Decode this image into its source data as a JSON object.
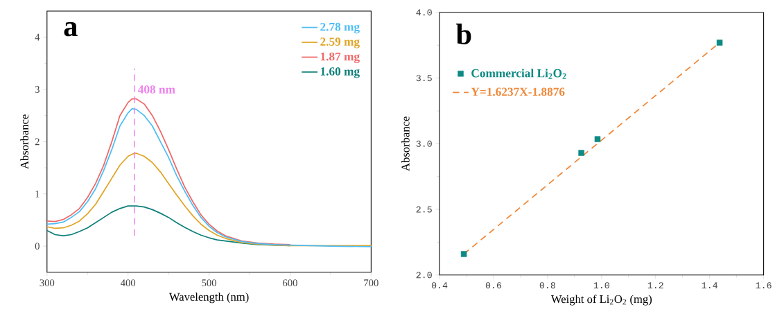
{
  "chart_data": [
    {
      "type": "line",
      "xlabel": "Wavelength (nm)",
      "ylabel": "Absorbance",
      "annotations": [
        "a"
      ],
      "xlim": [
        300,
        700
      ],
      "ylim": [
        -0.5,
        4.5
      ],
      "xticks": [
        300,
        400,
        500,
        600,
        700
      ],
      "yticks": [
        0,
        1,
        2,
        3,
        4
      ],
      "legend": "top right",
      "ref_lines": [
        {
          "axis": "x",
          "value": 408,
          "label": "408 nm",
          "color": "#ee82ee",
          "line_style": "dashed"
        }
      ],
      "x": [
        300,
        310,
        320,
        330,
        340,
        350,
        360,
        370,
        380,
        390,
        400,
        405,
        410,
        420,
        430,
        440,
        450,
        460,
        470,
        480,
        490,
        500,
        510,
        520,
        540,
        560,
        580,
        600,
        650,
        700
      ],
      "series": [
        {
          "name": "2.78 mg",
          "color": "#4dbdf5",
          "values": [
            0.42,
            0.43,
            0.46,
            0.55,
            0.66,
            0.85,
            1.1,
            1.45,
            1.85,
            2.3,
            2.55,
            2.63,
            2.62,
            2.5,
            2.3,
            2.0,
            1.7,
            1.35,
            1.05,
            0.78,
            0.55,
            0.38,
            0.26,
            0.18,
            0.09,
            0.05,
            0.03,
            0.02,
            0,
            -0.01
          ]
        },
        {
          "name": "2.59 mg",
          "color": "#e0a526",
          "values": [
            0.37,
            0.34,
            0.35,
            0.4,
            0.48,
            0.62,
            0.8,
            1.05,
            1.3,
            1.55,
            1.72,
            1.76,
            1.78,
            1.72,
            1.6,
            1.42,
            1.2,
            0.98,
            0.77,
            0.58,
            0.42,
            0.3,
            0.21,
            0.15,
            0.07,
            0.04,
            0.02,
            0.01,
            0.01,
            0.01
          ]
        },
        {
          "name": "1.87 mg",
          "color": "#f06767",
          "values": [
            0.48,
            0.47,
            0.51,
            0.6,
            0.72,
            0.93,
            1.2,
            1.55,
            2.0,
            2.5,
            2.75,
            2.82,
            2.82,
            2.72,
            2.5,
            2.2,
            1.85,
            1.48,
            1.13,
            0.85,
            0.6,
            0.42,
            0.29,
            0.2,
            0.1,
            0.06,
            0.04,
            0.03,
            null,
            null
          ]
        },
        {
          "name": "1.60 mg",
          "color": "#0e7f7a",
          "values": [
            0.3,
            0.22,
            0.2,
            0.22,
            0.28,
            0.35,
            0.45,
            0.55,
            0.65,
            0.72,
            0.77,
            0.77,
            0.77,
            0.75,
            0.7,
            0.63,
            0.55,
            0.45,
            0.36,
            0.28,
            0.21,
            0.16,
            0.12,
            0.1,
            0.06,
            0.03,
            0.02,
            0.01,
            null,
            null
          ]
        }
      ]
    },
    {
      "type": "scatter",
      "xlabel": "Weight of Li$_{2}$O$_{2}$ (mg)",
      "ylabel": "Absorbance",
      "annotations": [
        "b"
      ],
      "xlim": [
        0.4,
        1.6
      ],
      "ylim": [
        2.0,
        4.0
      ],
      "xticks": [
        {
          "value": 0.4,
          "label": "0.4"
        },
        {
          "value": 0.6,
          "label": "0.6"
        },
        {
          "value": 0.8,
          "label": "0.8"
        },
        {
          "value": 1.0,
          "label": "1.0"
        },
        {
          "value": 1.2,
          "label": "1.2"
        },
        {
          "value": 1.4,
          "label": "1.4"
        },
        {
          "value": 1.6,
          "label": "1.6"
        }
      ],
      "yticks": [
        {
          "value": 2.0,
          "label": "2.0"
        },
        {
          "value": 2.5,
          "label": "2.5"
        },
        {
          "value": 3.0,
          "label": "3.0"
        },
        {
          "value": 3.5,
          "label": "3.5"
        },
        {
          "value": 4.0,
          "label": "4.0"
        }
      ],
      "legend": "top left",
      "marker": "square",
      "series": [
        {
          "name": "Commercial Li$_{2}$O$_{2}$",
          "color": "#0e8a84",
          "x": [
            0.49,
            0.925,
            0.985,
            1.437
          ],
          "values": [
            2.16,
            2.93,
            3.035,
            3.77
          ]
        },
        {
          "name": "Y=1.6237X-1.8876",
          "type": "line",
          "line_style": "dashed",
          "marker": "none",
          "color": "#f0883a",
          "x": [
            0.49,
            1.437
          ],
          "values": [
            2.16,
            3.77
          ]
        }
      ]
    }
  ]
}
